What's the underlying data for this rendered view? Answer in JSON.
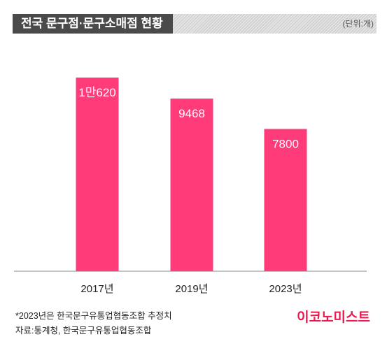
{
  "header": {
    "title": "전국 문구점·문구소매점 현황",
    "unit": "(단위:개)"
  },
  "chart_data": {
    "type": "bar",
    "categories": [
      "2017년",
      "2019년",
      "2023년"
    ],
    "values": [
      10620,
      9468,
      7800
    ],
    "value_labels": [
      "1만620",
      "9468",
      "7800"
    ],
    "title": "전국 문구점·문구소매점 현황",
    "xlabel": "",
    "ylabel": "",
    "ylim": [
      0,
      11500
    ],
    "grid": false,
    "bar_color": "#ff3b79"
  },
  "footer": {
    "note": "*2023년은 한국문구유통업협동조합 추정치",
    "source": "자료:통계청, 한국문구유통업협동조합",
    "logo": "이코노미스트"
  },
  "colors": {
    "accent": "#e8194f",
    "bar": "#ff3b79",
    "header_bg": "#4a4a4a"
  }
}
